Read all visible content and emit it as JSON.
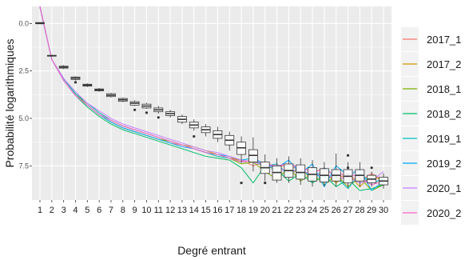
{
  "chart_data": {
    "type": "line",
    "xlabel": "Degré entrant",
    "ylabel": "Probabilité logarithmiques",
    "x": [
      1,
      2,
      3,
      4,
      5,
      6,
      7,
      8,
      9,
      10,
      11,
      12,
      13,
      14,
      15,
      16,
      17,
      18,
      19,
      20,
      21,
      22,
      23,
      24,
      25,
      26,
      27,
      28,
      29,
      30
    ],
    "ylim": [
      -9.3,
      0.9
    ],
    "y_axis_reversed": true,
    "y_tick_values": [
      0,
      -2.5,
      -5,
      -7.5
    ],
    "y_tick_labels": [
      "0.0",
      "2.5",
      "5.0",
      "7.5"
    ],
    "grid": true,
    "legend_position": "right",
    "colors": {
      "panel_background": "#ebebeb",
      "grid": "#ffffff",
      "box_fill": "#ffffff",
      "box_stroke": "#333333"
    },
    "series": [
      {
        "name": "2017_1",
        "color": "#F8766D",
        "values": [
          0.9,
          -1.9,
          -3.0,
          -3.8,
          -4.3,
          -4.8,
          -5.2,
          -5.5,
          -5.7,
          -5.9,
          -6.1,
          -6.3,
          -6.4,
          -6.6,
          -6.8,
          -6.9,
          -7.1,
          -7.2,
          -7.5,
          -7.3,
          -7.6,
          -7.4,
          -7.8,
          -7.9,
          -7.6,
          -8.1,
          -8.0,
          -8.3,
          -7.9,
          -8.3
        ]
      },
      {
        "name": "2017_2",
        "color": "#CD9600",
        "values": [
          0.85,
          -1.9,
          -2.9,
          -3.7,
          -4.2,
          -4.7,
          -5.1,
          -5.4,
          -5.6,
          -5.8,
          -6.0,
          -6.2,
          -6.4,
          -6.5,
          -6.7,
          -6.9,
          -7.0,
          -7.3,
          -7.2,
          -7.6,
          -7.5,
          -7.9,
          -7.7,
          -8.2,
          -7.8,
          -8.4,
          -7.9,
          -8.6,
          -8.0,
          -8.3
        ]
      },
      {
        "name": "2018_1",
        "color": "#7CAE00",
        "values": [
          0.9,
          -1.9,
          -2.9,
          -3.7,
          -4.3,
          -4.8,
          -5.2,
          -5.5,
          -5.7,
          -5.9,
          -6.1,
          -6.2,
          -6.4,
          -6.6,
          -6.8,
          -7.0,
          -7.1,
          -7.4,
          -7.3,
          -7.8,
          -8.2,
          -7.6,
          -8.3,
          -7.9,
          -8.5,
          -8.0,
          -8.6,
          -8.1,
          -8.8,
          -8.5
        ]
      },
      {
        "name": "2018_2",
        "color": "#00BE67",
        "values": [
          0.85,
          -1.9,
          -3.0,
          -3.8,
          -4.4,
          -4.9,
          -5.3,
          -5.6,
          -5.8,
          -6.0,
          -6.2,
          -6.4,
          -6.6,
          -6.8,
          -7.0,
          -7.1,
          -7.2,
          -7.6,
          -8.4,
          -7.5,
          -7.7,
          -8.3,
          -7.9,
          -8.4,
          -8.0,
          -8.6,
          -8.2,
          -8.8,
          -8.7,
          -8.5
        ]
      },
      {
        "name": "2019_1",
        "color": "#00BFC4",
        "values": [
          0.85,
          -1.9,
          -2.9,
          -3.7,
          -4.2,
          -4.7,
          -5.1,
          -5.4,
          -5.6,
          -5.8,
          -6.0,
          -6.2,
          -6.4,
          -6.6,
          -6.8,
          -7.0,
          -7.1,
          -7.3,
          -7.2,
          -7.5,
          -7.4,
          -8.0,
          -7.5,
          -8.3,
          -7.6,
          -8.1,
          -8.7,
          -7.9,
          -8.4,
          -8.2
        ]
      },
      {
        "name": "2019_2",
        "color": "#00A9FF",
        "values": [
          0.9,
          -1.9,
          -3.0,
          -3.8,
          -4.3,
          -4.8,
          -5.2,
          -5.5,
          -5.7,
          -5.9,
          -6.1,
          -6.3,
          -6.5,
          -6.6,
          -6.8,
          -6.9,
          -7.0,
          -7.2,
          -7.1,
          -7.4,
          -7.6,
          -7.2,
          -7.9,
          -7.4,
          -8.6,
          -7.5,
          -8.0,
          -7.7,
          -8.8,
          -8.3
        ]
      },
      {
        "name": "2020_1",
        "color": "#C77CFF",
        "values": [
          0.85,
          -1.9,
          -2.9,
          -3.6,
          -4.2,
          -4.6,
          -5.0,
          -5.3,
          -5.5,
          -5.7,
          -5.9,
          -6.1,
          -6.3,
          -6.5,
          -6.7,
          -6.8,
          -7.0,
          -7.2,
          -7.3,
          -7.5,
          -7.6,
          -7.8,
          -7.7,
          -8.0,
          -7.9,
          -8.2,
          -8.1,
          -8.4,
          -8.3,
          -7.8
        ]
      },
      {
        "name": "2020_2",
        "color": "#FF61CC",
        "values": [
          0.9,
          -1.9,
          -3.0,
          -3.8,
          -4.3,
          -4.8,
          -5.1,
          -5.4,
          -5.6,
          -5.8,
          -6.0,
          -6.2,
          -6.4,
          -6.6,
          -6.8,
          -6.9,
          -7.1,
          -7.3,
          -7.2,
          -7.4,
          -7.5,
          -7.4,
          -7.6,
          -7.8,
          -7.7,
          -8.0,
          -7.9,
          -8.1,
          -8.5,
          -8.3
        ]
      }
    ],
    "boxplot": [
      {
        "x": 1,
        "q1": 0.0,
        "median": 0.0,
        "q3": 0.05,
        "low": -0.02,
        "high": 0.07,
        "outliers": []
      },
      {
        "x": 2,
        "q1": -1.72,
        "median": -1.7,
        "q3": -1.68,
        "low": -1.74,
        "high": -1.66,
        "outliers": []
      },
      {
        "x": 3,
        "q1": -2.35,
        "median": -2.3,
        "q3": -2.25,
        "low": -2.4,
        "high": -2.2,
        "outliers": []
      },
      {
        "x": 4,
        "q1": -2.95,
        "median": -2.88,
        "q3": -2.82,
        "low": -3.0,
        "high": -2.78,
        "outliers": [
          -3.1
        ]
      },
      {
        "x": 5,
        "q1": -3.3,
        "median": -3.25,
        "q3": -3.2,
        "low": -3.35,
        "high": -3.15,
        "outliers": []
      },
      {
        "x": 6,
        "q1": -3.55,
        "median": -3.5,
        "q3": -3.45,
        "low": -3.6,
        "high": -3.4,
        "outliers": []
      },
      {
        "x": 7,
        "q1": -3.85,
        "median": -3.78,
        "q3": -3.7,
        "low": -3.9,
        "high": -3.65,
        "outliers": []
      },
      {
        "x": 8,
        "q1": -4.1,
        "median": -4.02,
        "q3": -3.95,
        "low": -4.15,
        "high": -3.9,
        "outliers": []
      },
      {
        "x": 9,
        "q1": -4.3,
        "median": -4.2,
        "q3": -4.12,
        "low": -4.35,
        "high": -4.05,
        "outliers": [
          -4.55
        ]
      },
      {
        "x": 10,
        "q1": -4.45,
        "median": -4.35,
        "q3": -4.25,
        "low": -4.5,
        "high": -4.18,
        "outliers": [
          -4.7
        ]
      },
      {
        "x": 11,
        "q1": -4.65,
        "median": -4.55,
        "q3": -4.45,
        "low": -4.75,
        "high": -4.35,
        "outliers": [
          -4.95
        ]
      },
      {
        "x": 12,
        "q1": -4.85,
        "median": -4.75,
        "q3": -4.65,
        "low": -4.95,
        "high": -4.55,
        "outliers": []
      },
      {
        "x": 13,
        "q1": -5.2,
        "median": -5.05,
        "q3": -4.9,
        "low": -5.3,
        "high": -4.8,
        "outliers": []
      },
      {
        "x": 14,
        "q1": -5.5,
        "median": -5.35,
        "q3": -5.2,
        "low": -5.65,
        "high": -5.05,
        "outliers": [
          -5.95
        ]
      },
      {
        "x": 15,
        "q1": -5.75,
        "median": -5.6,
        "q3": -5.45,
        "low": -5.95,
        "high": -5.3,
        "outliers": []
      },
      {
        "x": 16,
        "q1": -6.05,
        "median": -5.85,
        "q3": -5.65,
        "low": -6.25,
        "high": -5.45,
        "outliers": []
      },
      {
        "x": 17,
        "q1": -6.4,
        "median": -6.15,
        "q3": -5.9,
        "low": -6.7,
        "high": -5.7,
        "outliers": []
      },
      {
        "x": 18,
        "q1": -6.9,
        "median": -6.55,
        "q3": -6.25,
        "low": -7.35,
        "high": -5.95,
        "outliers": [
          -8.4
        ]
      },
      {
        "x": 19,
        "q1": -7.3,
        "median": -6.95,
        "q3": -6.65,
        "low": -7.8,
        "high": -6.0,
        "outliers": []
      },
      {
        "x": 20,
        "q1": -7.9,
        "median": -7.6,
        "q3": -7.3,
        "low": -8.3,
        "high": -6.9,
        "outliers": [
          -8.4
        ]
      },
      {
        "x": 21,
        "q1": -8.25,
        "median": -7.85,
        "q3": -7.5,
        "low": -8.4,
        "high": -7.1,
        "outliers": []
      },
      {
        "x": 22,
        "q1": -8.1,
        "median": -7.75,
        "q3": -7.4,
        "low": -8.4,
        "high": -7.0,
        "outliers": []
      },
      {
        "x": 23,
        "q1": -8.2,
        "median": -7.85,
        "q3": -7.45,
        "low": -8.5,
        "high": -7.1,
        "outliers": []
      },
      {
        "x": 24,
        "q1": -8.3,
        "median": -7.95,
        "q3": -7.6,
        "low": -8.6,
        "high": -7.2,
        "outliers": []
      },
      {
        "x": 25,
        "q1": -8.35,
        "median": -8.0,
        "q3": -7.65,
        "low": -8.6,
        "high": -7.3,
        "outliers": []
      },
      {
        "x": 26,
        "q1": -8.3,
        "median": -8.0,
        "q3": -7.7,
        "low": -8.6,
        "high": -6.85,
        "outliers": []
      },
      {
        "x": 27,
        "q1": -8.4,
        "median": -8.05,
        "q3": -7.7,
        "low": -8.65,
        "high": -7.3,
        "outliers": [
          -6.95,
          -7.6
        ]
      },
      {
        "x": 28,
        "q1": -8.3,
        "median": -8.0,
        "q3": -7.7,
        "low": -8.6,
        "high": -7.3,
        "outliers": []
      },
      {
        "x": 29,
        "q1": -8.4,
        "median": -8.2,
        "q3": -8.0,
        "low": -8.6,
        "high": -7.8,
        "outliers": [
          -7.6
        ]
      },
      {
        "x": 30,
        "q1": -8.5,
        "median": -8.3,
        "q3": -8.1,
        "low": -8.7,
        "high": -7.9,
        "outliers": []
      }
    ]
  }
}
